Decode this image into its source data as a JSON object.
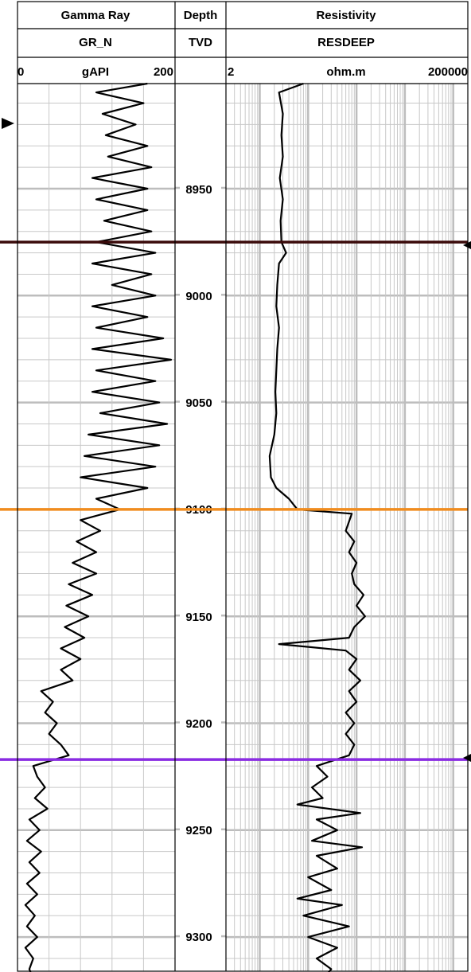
{
  "tracks": [
    {
      "title": "Gamma Ray",
      "mnemonic": "GR_N",
      "unit": "gAPI",
      "min_label": "0",
      "max_label": "200"
    },
    {
      "title": "Depth",
      "mnemonic": "TVD"
    },
    {
      "title": "Resistivity",
      "mnemonic": "RESDEEP",
      "unit": "ohm.m",
      "min_label": "2",
      "max_label": "200000"
    }
  ],
  "depth_labels": [
    "8950",
    "9000",
    "9050",
    "9100",
    "9150",
    "9200",
    "9250",
    "9300"
  ],
  "colors": {
    "grid": "#bdbdbd",
    "curve": "#000000",
    "top_line": "#3a0a0a",
    "middle_line": "#f08c1e",
    "bottom_line": "#8a2be2",
    "arrow": "#000000"
  },
  "chart_data": {
    "type": "line",
    "y_axis": {
      "label": "TVD",
      "range": [
        8900,
        9320
      ],
      "reversed": true
    },
    "tracks": [
      {
        "name": "GR_N",
        "unit": "gAPI",
        "scale": "linear",
        "xlim": [
          0,
          200
        ],
        "series": [
          {
            "depth": 8900,
            "value": 165
          },
          {
            "depth": 8905,
            "value": 100
          },
          {
            "depth": 8910,
            "value": 160
          },
          {
            "depth": 8915,
            "value": 108
          },
          {
            "depth": 8920,
            "value": 150
          },
          {
            "depth": 8925,
            "value": 112
          },
          {
            "depth": 8930,
            "value": 165
          },
          {
            "depth": 8935,
            "value": 115
          },
          {
            "depth": 8940,
            "value": 170
          },
          {
            "depth": 8945,
            "value": 95
          },
          {
            "depth": 8950,
            "value": 165
          },
          {
            "depth": 8955,
            "value": 100
          },
          {
            "depth": 8960,
            "value": 165
          },
          {
            "depth": 8965,
            "value": 110
          },
          {
            "depth": 8970,
            "value": 170
          },
          {
            "depth": 8975,
            "value": 100
          },
          {
            "depth": 8980,
            "value": 175
          },
          {
            "depth": 8985,
            "value": 95
          },
          {
            "depth": 8990,
            "value": 170
          },
          {
            "depth": 8995,
            "value": 120
          },
          {
            "depth": 9000,
            "value": 175
          },
          {
            "depth": 9005,
            "value": 95
          },
          {
            "depth": 9010,
            "value": 165
          },
          {
            "depth": 9015,
            "value": 100
          },
          {
            "depth": 9020,
            "value": 185
          },
          {
            "depth": 9025,
            "value": 95
          },
          {
            "depth": 9030,
            "value": 195
          },
          {
            "depth": 9035,
            "value": 100
          },
          {
            "depth": 9040,
            "value": 175
          },
          {
            "depth": 9045,
            "value": 95
          },
          {
            "depth": 9050,
            "value": 180
          },
          {
            "depth": 9055,
            "value": 105
          },
          {
            "depth": 9060,
            "value": 190
          },
          {
            "depth": 9065,
            "value": 90
          },
          {
            "depth": 9070,
            "value": 180
          },
          {
            "depth": 9075,
            "value": 85
          },
          {
            "depth": 9080,
            "value": 175
          },
          {
            "depth": 9085,
            "value": 80
          },
          {
            "depth": 9090,
            "value": 165
          },
          {
            "depth": 9095,
            "value": 100
          },
          {
            "depth": 9100,
            "value": 130
          },
          {
            "depth": 9105,
            "value": 80
          },
          {
            "depth": 9110,
            "value": 105
          },
          {
            "depth": 9115,
            "value": 75
          },
          {
            "depth": 9120,
            "value": 100
          },
          {
            "depth": 9125,
            "value": 70
          },
          {
            "depth": 9130,
            "value": 100
          },
          {
            "depth": 9135,
            "value": 65
          },
          {
            "depth": 9140,
            "value": 95
          },
          {
            "depth": 9145,
            "value": 62
          },
          {
            "depth": 9150,
            "value": 90
          },
          {
            "depth": 9155,
            "value": 60
          },
          {
            "depth": 9160,
            "value": 85
          },
          {
            "depth": 9165,
            "value": 55
          },
          {
            "depth": 9170,
            "value": 80
          },
          {
            "depth": 9175,
            "value": 55
          },
          {
            "depth": 9180,
            "value": 70
          },
          {
            "depth": 9185,
            "value": 30
          },
          {
            "depth": 9190,
            "value": 45
          },
          {
            "depth": 9195,
            "value": 35
          },
          {
            "depth": 9200,
            "value": 50
          },
          {
            "depth": 9205,
            "value": 40
          },
          {
            "depth": 9210,
            "value": 55
          },
          {
            "depth": 9215,
            "value": 65
          },
          {
            "depth": 9220,
            "value": 20
          },
          {
            "depth": 9225,
            "value": 25
          },
          {
            "depth": 9230,
            "value": 35
          },
          {
            "depth": 9235,
            "value": 22
          },
          {
            "depth": 9240,
            "value": 38
          },
          {
            "depth": 9245,
            "value": 15
          },
          {
            "depth": 9250,
            "value": 28
          },
          {
            "depth": 9255,
            "value": 12
          },
          {
            "depth": 9260,
            "value": 30
          },
          {
            "depth": 9265,
            "value": 15
          },
          {
            "depth": 9270,
            "value": 28
          },
          {
            "depth": 9275,
            "value": 12
          },
          {
            "depth": 9280,
            "value": 25
          },
          {
            "depth": 9285,
            "value": 10
          },
          {
            "depth": 9290,
            "value": 22
          },
          {
            "depth": 9295,
            "value": 12
          },
          {
            "depth": 9300,
            "value": 25
          },
          {
            "depth": 9305,
            "value": 10
          },
          {
            "depth": 9310,
            "value": 20
          },
          {
            "depth": 9315,
            "value": 15
          },
          {
            "depth": 9320,
            "value": 20
          }
        ]
      },
      {
        "name": "RESDEEP",
        "unit": "ohm.m",
        "scale": "log",
        "xlim": [
          2,
          200000
        ],
        "series": [
          {
            "depth": 8900,
            "value": 80
          },
          {
            "depth": 8905,
            "value": 25
          },
          {
            "depth": 8915,
            "value": 30
          },
          {
            "depth": 8925,
            "value": 28
          },
          {
            "depth": 8935,
            "value": 30
          },
          {
            "depth": 8945,
            "value": 26
          },
          {
            "depth": 8955,
            "value": 30
          },
          {
            "depth": 8965,
            "value": 27
          },
          {
            "depth": 8975,
            "value": 28
          },
          {
            "depth": 8980,
            "value": 35
          },
          {
            "depth": 8985,
            "value": 25
          },
          {
            "depth": 8995,
            "value": 23
          },
          {
            "depth": 9005,
            "value": 22
          },
          {
            "depth": 9015,
            "value": 25
          },
          {
            "depth": 9025,
            "value": 23
          },
          {
            "depth": 9035,
            "value": 22
          },
          {
            "depth": 9045,
            "value": 21
          },
          {
            "depth": 9055,
            "value": 22
          },
          {
            "depth": 9065,
            "value": 20
          },
          {
            "depth": 9075,
            "value": 16
          },
          {
            "depth": 9085,
            "value": 17
          },
          {
            "depth": 9090,
            "value": 22
          },
          {
            "depth": 9095,
            "value": 40
          },
          {
            "depth": 9100,
            "value": 60
          },
          {
            "depth": 9102,
            "value": 800
          },
          {
            "depth": 9110,
            "value": 600
          },
          {
            "depth": 9115,
            "value": 900
          },
          {
            "depth": 9120,
            "value": 700
          },
          {
            "depth": 9125,
            "value": 1000
          },
          {
            "depth": 9130,
            "value": 800
          },
          {
            "depth": 9135,
            "value": 900
          },
          {
            "depth": 9140,
            "value": 1400
          },
          {
            "depth": 9145,
            "value": 1000
          },
          {
            "depth": 9150,
            "value": 1500
          },
          {
            "depth": 9155,
            "value": 900
          },
          {
            "depth": 9160,
            "value": 700
          },
          {
            "depth": 9163,
            "value": 25
          },
          {
            "depth": 9166,
            "value": 600
          },
          {
            "depth": 9170,
            "value": 1000
          },
          {
            "depth": 9175,
            "value": 700
          },
          {
            "depth": 9180,
            "value": 1200
          },
          {
            "depth": 9185,
            "value": 700
          },
          {
            "depth": 9190,
            "value": 1000
          },
          {
            "depth": 9195,
            "value": 600
          },
          {
            "depth": 9200,
            "value": 900
          },
          {
            "depth": 9205,
            "value": 600
          },
          {
            "depth": 9210,
            "value": 900
          },
          {
            "depth": 9215,
            "value": 700
          },
          {
            "depth": 9220,
            "value": 150
          },
          {
            "depth": 9225,
            "value": 250
          },
          {
            "depth": 9230,
            "value": 120
          },
          {
            "depth": 9235,
            "value": 200
          },
          {
            "depth": 9238,
            "value": 60
          },
          {
            "depth": 9242,
            "value": 1200
          },
          {
            "depth": 9245,
            "value": 150
          },
          {
            "depth": 9250,
            "value": 400
          },
          {
            "depth": 9255,
            "value": 120
          },
          {
            "depth": 9258,
            "value": 1300
          },
          {
            "depth": 9262,
            "value": 150
          },
          {
            "depth": 9268,
            "value": 400
          },
          {
            "depth": 9272,
            "value": 100
          },
          {
            "depth": 9278,
            "value": 300
          },
          {
            "depth": 9282,
            "value": 60
          },
          {
            "depth": 9285,
            "value": 500
          },
          {
            "depth": 9290,
            "value": 80
          },
          {
            "depth": 9295,
            "value": 700
          },
          {
            "depth": 9300,
            "value": 100
          },
          {
            "depth": 9305,
            "value": 400
          },
          {
            "depth": 9310,
            "value": 150
          },
          {
            "depth": 9315,
            "value": 300
          },
          {
            "depth": 9320,
            "value": 200
          }
        ]
      }
    ],
    "markers": [
      {
        "depth": 8975,
        "color": "#3a0a0a"
      },
      {
        "depth": 9100,
        "color": "#f08c1e"
      },
      {
        "depth": 9217,
        "color": "#8a2be2"
      }
    ]
  }
}
